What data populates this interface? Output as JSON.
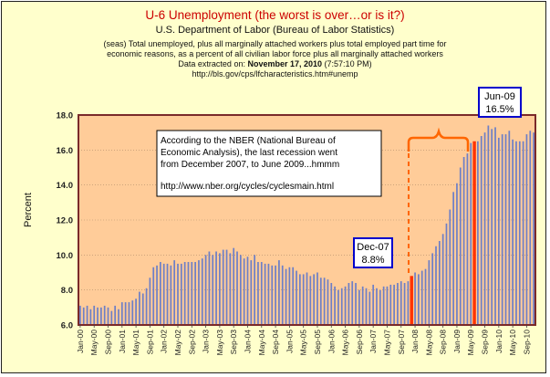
{
  "header": {
    "title": "U-6 Unemployment (the worst is over…or is it?)",
    "subtitle": "U.S. Department of Labor (Bureau of Labor Statistics)",
    "note_line1": "(seas) Total unemployed, plus all marginally attached workers plus total employed part time for",
    "note_line2": "economic reasons, as a percent of all civilian labor force plus all marginally attached workers",
    "note_line3_prefix": "Data extracted on:",
    "note_line3_date": "November 17, 2010",
    "note_line3_time": "(7:57:10 PM)",
    "note_line4": "http://bls.gov/cps/lfcharacteristics.htm#unemp"
  },
  "annotation_box": {
    "line1": "According to the NBER (National Bureau of",
    "line2": "Economic Analysis), the last recession went",
    "line3": "from December 2007, to June 2009...hmmm",
    "line4": "http://www.nber.org/cycles/cyclesmain.html"
  },
  "callouts": {
    "dec07_month": "Dec-07",
    "dec07_value": "8.8%",
    "jun09_month": "Jun-09",
    "jun09_value": "16.5%"
  },
  "colors": {
    "frame_bg": "#ffffcc",
    "plot_bg": "#ffcc99",
    "plot_border": "#7a2a2a",
    "bar": "#6e7fc6",
    "highlight_bar": "#ff3300",
    "bracket": "#ff6600",
    "callout_border": "#0000cc",
    "title": "#cc0000"
  },
  "chart_data": {
    "type": "bar",
    "ylabel": "Percent",
    "ylim": [
      6.0,
      18.0
    ],
    "yticks": [
      "6.0",
      "8.0",
      "10.0",
      "12.0",
      "14.0",
      "16.0",
      "18.0"
    ],
    "xtick_labels": [
      "Jan-00",
      "May-00",
      "Sep-00",
      "Jan-01",
      "May-01",
      "Sep-01",
      "Jan-02",
      "May-02",
      "Sep-02",
      "Jan-03",
      "May-03",
      "Sep-03",
      "Jan-04",
      "May-04",
      "Sep-04",
      "Jan-05",
      "May-05",
      "Sep-05",
      "Jan-06",
      "May-06",
      "Sep-06",
      "Jan-07",
      "May-07",
      "Sep-07",
      "Jan-08",
      "May-08",
      "Sep-08",
      "Jan-09",
      "May-09",
      "Sep-09",
      "Jan-10",
      "May-10",
      "Sep-10"
    ],
    "start_month": "Jan-00",
    "highlighted_months": [
      "Dec-07",
      "Jun-09"
    ],
    "values": [
      7.1,
      7.0,
      7.1,
      6.9,
      7.1,
      7.0,
      7.0,
      7.1,
      7.0,
      6.8,
      7.1,
      6.9,
      7.3,
      7.3,
      7.3,
      7.4,
      7.5,
      7.9,
      7.8,
      8.1,
      8.7,
      9.3,
      9.4,
      9.6,
      9.5,
      9.5,
      9.4,
      9.7,
      9.5,
      9.5,
      9.6,
      9.6,
      9.6,
      9.6,
      9.7,
      9.8,
      10.0,
      10.2,
      10.0,
      10.2,
      10.1,
      10.3,
      10.3,
      10.1,
      10.4,
      10.2,
      10.0,
      9.8,
      9.9,
      9.7,
      10.0,
      9.6,
      9.6,
      9.5,
      9.5,
      9.4,
      9.4,
      9.7,
      9.4,
      9.2,
      9.3,
      9.3,
      9.1,
      8.9,
      8.9,
      9.0,
      8.8,
      8.9,
      9.0,
      8.7,
      8.7,
      8.6,
      8.4,
      8.2,
      8.0,
      8.1,
      8.2,
      8.4,
      8.5,
      8.4,
      8.0,
      8.2,
      8.1,
      7.9,
      8.3,
      8.1,
      8.0,
      8.2,
      8.2,
      8.3,
      8.3,
      8.4,
      8.5,
      8.4,
      8.5,
      8.8,
      9.0,
      8.9,
      9.1,
      9.2,
      9.7,
      10.1,
      10.5,
      10.8,
      11.2,
      11.8,
      12.6,
      13.6,
      14.1,
      15.0,
      15.6,
      15.8,
      16.4,
      16.5,
      16.5,
      16.8,
      17.0,
      17.4,
      17.2,
      17.3,
      16.7,
      16.9,
      16.9,
      17.1,
      16.6,
      16.5,
      16.5,
      16.5,
      16.9,
      17.1,
      17.0
    ]
  }
}
